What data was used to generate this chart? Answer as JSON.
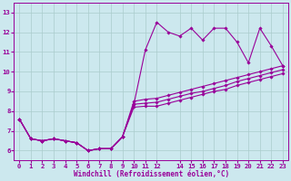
{
  "xlabel": "Windchill (Refroidissement éolien,°C)",
  "bg_color": "#cce8ee",
  "line_color": "#990099",
  "grid_color": "#aacccc",
  "xlim": [
    -0.5,
    23.5
  ],
  "ylim": [
    5.5,
    13.5
  ],
  "yticks": [
    6,
    7,
    8,
    9,
    10,
    11,
    12,
    13
  ],
  "xticks": [
    0,
    1,
    2,
    3,
    4,
    5,
    6,
    7,
    8,
    9,
    10,
    11,
    12,
    14,
    15,
    16,
    17,
    18,
    19,
    20,
    21,
    22,
    23
  ],
  "series": [
    [
      7.6,
      6.6,
      6.5,
      6.6,
      6.5,
      6.4,
      6.0,
      6.1,
      6.1,
      6.7,
      8.35,
      11.1,
      12.5,
      12.0,
      11.8,
      12.2,
      11.6,
      12.2,
      12.2,
      11.5,
      10.45,
      12.2,
      11.3,
      10.3
    ],
    [
      7.6,
      6.6,
      6.5,
      6.6,
      6.5,
      6.4,
      6.0,
      6.1,
      6.1,
      6.7,
      8.5,
      8.6,
      8.65,
      8.8,
      8.95,
      9.1,
      9.25,
      9.4,
      9.55,
      9.7,
      9.85,
      10.0,
      10.15,
      10.3
    ],
    [
      7.6,
      6.6,
      6.5,
      6.6,
      6.5,
      6.4,
      6.0,
      6.1,
      6.1,
      6.7,
      8.35,
      8.4,
      8.45,
      8.6,
      8.75,
      8.9,
      9.0,
      9.15,
      9.3,
      9.5,
      9.65,
      9.8,
      9.95,
      10.1
    ],
    [
      7.6,
      6.6,
      6.5,
      6.6,
      6.5,
      6.4,
      6.0,
      6.1,
      6.1,
      6.7,
      8.2,
      8.25,
      8.25,
      8.4,
      8.55,
      8.7,
      8.85,
      9.0,
      9.1,
      9.3,
      9.45,
      9.6,
      9.75,
      9.9
    ]
  ],
  "tick_fontsize": 5.2,
  "xlabel_fontsize": 5.5
}
